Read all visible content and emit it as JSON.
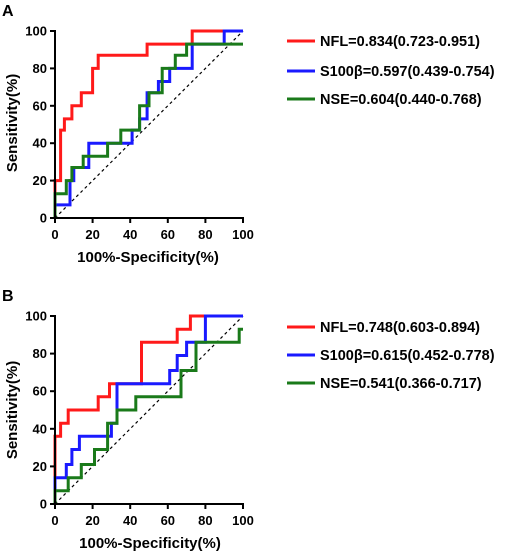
{
  "chart_data": [
    {
      "type": "line",
      "panel_label": "A",
      "xlabel": "100%-Specificity(%)",
      "ylabel": "Sensitivity(%)",
      "xlim": [
        0,
        100
      ],
      "ylim": [
        0,
        100
      ],
      "xticks": [
        0,
        20,
        40,
        60,
        80,
        100
      ],
      "yticks": [
        0,
        20,
        40,
        60,
        80,
        100
      ],
      "grid": false,
      "legend_position": "right",
      "reference_line": {
        "x": [
          0,
          100
        ],
        "y": [
          0,
          100
        ],
        "style": "dashed",
        "color": "#000000"
      },
      "series": [
        {
          "name": "NFL=0.834(0.723-0.951)",
          "color": "#ff1a1a",
          "x": [
            0,
            0,
            3,
            3,
            5,
            5,
            9,
            9,
            14,
            14,
            20,
            20,
            23,
            23,
            27,
            27,
            33,
            33,
            49,
            49,
            73,
            73,
            100
          ],
          "y": [
            0,
            20,
            20,
            47,
            47,
            53,
            53,
            60,
            60,
            67,
            67,
            80,
            80,
            87,
            87,
            87,
            87,
            87,
            87,
            93,
            93,
            100,
            100
          ]
        },
        {
          "name": "S100β=0.597(0.439-0.754)",
          "color": "#1a1aff",
          "x": [
            0,
            0,
            8,
            8,
            10,
            10,
            18,
            18,
            41,
            41,
            45,
            45,
            49,
            49,
            55,
            55,
            61,
            61,
            73,
            73,
            90,
            90,
            100
          ],
          "y": [
            0,
            7,
            7,
            20,
            20,
            27,
            27,
            40,
            40,
            47,
            47,
            53,
            53,
            67,
            67,
            73,
            73,
            80,
            80,
            93,
            93,
            100,
            100
          ]
        },
        {
          "name": "NSE=0.604(0.440-0.768)",
          "color": "#1a7a1a",
          "x": [
            0,
            0,
            6,
            6,
            9,
            9,
            15,
            15,
            28,
            28,
            35,
            35,
            45,
            45,
            50,
            50,
            57,
            57,
            64,
            64,
            70,
            70,
            74,
            74,
            100
          ],
          "y": [
            0,
            13,
            13,
            20,
            20,
            27,
            27,
            33,
            33,
            40,
            40,
            47,
            47,
            60,
            60,
            67,
            67,
            80,
            80,
            87,
            87,
            93,
            93,
            93,
            93
          ]
        }
      ]
    },
    {
      "type": "line",
      "panel_label": "B",
      "xlabel": "100%-Specificity(%)",
      "ylabel": "Sensitivity(%)",
      "xlim": [
        0,
        100
      ],
      "ylim": [
        0,
        100
      ],
      "xticks": [
        0,
        20,
        40,
        60,
        80,
        100
      ],
      "yticks": [
        0,
        20,
        40,
        60,
        80,
        100
      ],
      "grid": false,
      "legend_position": "right",
      "reference_line": {
        "x": [
          0,
          100
        ],
        "y": [
          0,
          100
        ],
        "style": "dashed",
        "color": "#000000"
      },
      "series": [
        {
          "name": "NFL=0.748(0.603-0.894)",
          "color": "#ff1a1a",
          "x": [
            0,
            0,
            3,
            3,
            7,
            7,
            12,
            12,
            23,
            23,
            29,
            29,
            35,
            35,
            46,
            46,
            65,
            65,
            72,
            72,
            80,
            80,
            100
          ],
          "y": [
            0,
            36,
            36,
            43,
            43,
            50,
            50,
            50,
            50,
            57,
            57,
            64,
            64,
            64,
            64,
            86,
            86,
            93,
            93,
            100,
            100,
            100,
            100
          ]
        },
        {
          "name": "S100β=0.615(0.452-0.778)",
          "color": "#1a1aff",
          "x": [
            0,
            0,
            6,
            6,
            9,
            9,
            13,
            13,
            17,
            17,
            30,
            30,
            33,
            33,
            46,
            46,
            61,
            61,
            65,
            65,
            70,
            70,
            80,
            80,
            100
          ],
          "y": [
            0,
            14,
            14,
            21,
            21,
            29,
            29,
            36,
            36,
            36,
            36,
            43,
            43,
            64,
            64,
            64,
            64,
            71,
            71,
            79,
            79,
            86,
            86,
            100,
            100
          ]
        },
        {
          "name": "NSE=0.541(0.366-0.717)",
          "color": "#1a7a1a",
          "x": [
            0,
            0,
            7,
            7,
            14,
            14,
            21,
            21,
            28,
            28,
            33,
            33,
            43,
            43,
            52,
            52,
            67,
            67,
            75,
            75,
            93,
            93,
            98,
            98,
            100
          ],
          "y": [
            0,
            7,
            7,
            14,
            14,
            21,
            21,
            29,
            29,
            43,
            43,
            50,
            50,
            57,
            57,
            57,
            57,
            71,
            71,
            86,
            86,
            86,
            86,
            93,
            93
          ]
        }
      ]
    }
  ]
}
